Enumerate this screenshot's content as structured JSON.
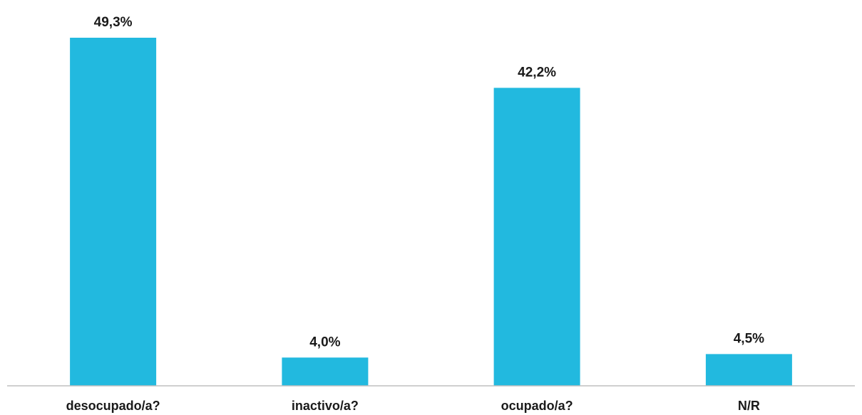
{
  "chart_data": {
    "type": "bar",
    "categories": [
      "desocupado/a?",
      "inactivo/a?",
      "ocupado/a?",
      "N/R"
    ],
    "values": [
      49.3,
      4.0,
      42.2,
      4.5
    ],
    "data_labels": [
      "49,3%",
      "4,0%",
      "42,2%",
      "4,5%"
    ],
    "title": "",
    "xlabel": "",
    "ylabel": "",
    "ylim": [
      0,
      49.3
    ],
    "grid": false,
    "legend": "none",
    "colors": {
      "bar": "#22B9DF",
      "axis": "#bfbfbf",
      "text": "#1a1a1a"
    }
  }
}
